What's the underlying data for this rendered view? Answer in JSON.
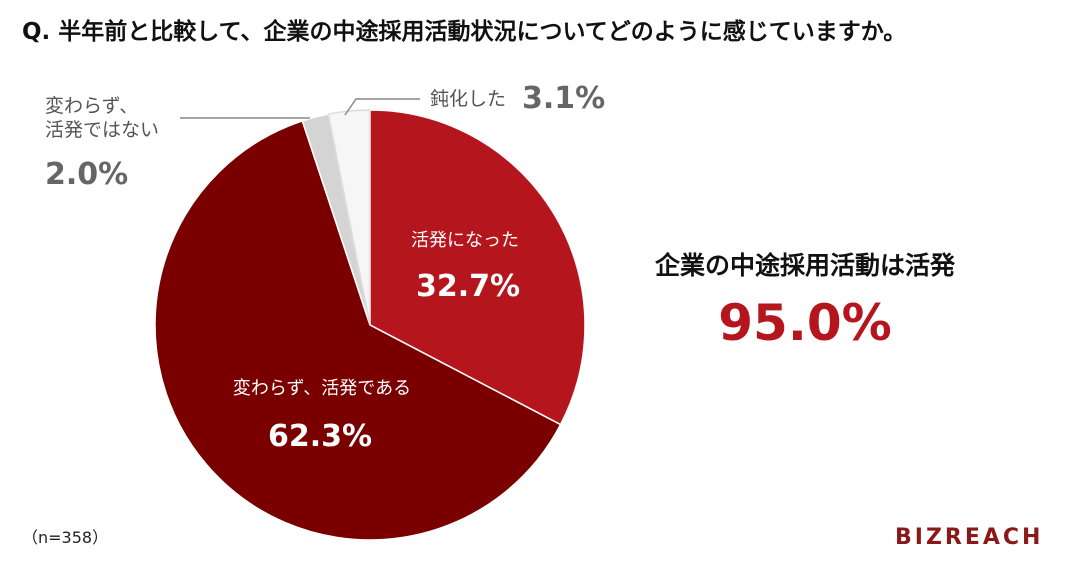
{
  "chart_data": {
    "type": "pie",
    "title": "Q. 半年前と比較して、企業の中途採用活動状況についてどのように感じていますか。",
    "categories": [
      "活発になった",
      "変わらず、活発である",
      "変わらず、\n活発ではない",
      "鈍化した"
    ],
    "values": [
      32.7,
      62.3,
      2.0,
      3.1
    ],
    "value_labels": [
      "32.7%",
      "62.3%",
      "2.0%",
      "3.1%"
    ],
    "colors": [
      "#b5161e",
      "#7a0000",
      "#d4d4d4",
      "#f6f6f6"
    ],
    "annotations": [
      "企業の中途採用活動は活発",
      "95.0%"
    ],
    "note": "（n=358）",
    "logo": "BIZREACH"
  }
}
